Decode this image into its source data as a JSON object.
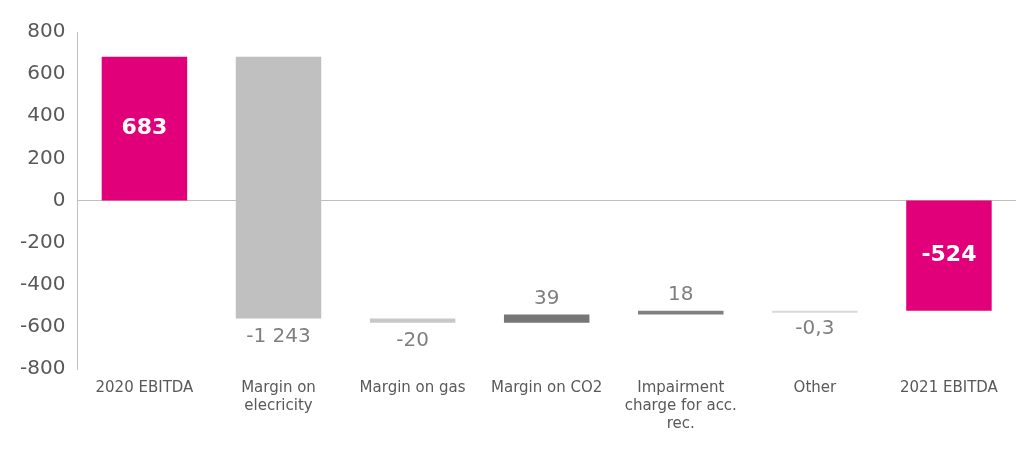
{
  "chart_data": {
    "type": "bar",
    "categories": [
      "2020 EBITDA",
      "Margin on elecricity",
      "Margin on gas",
      "Margin on CO2",
      "Impairment charge for acc. rec.",
      "Other",
      "2021 EBITDA"
    ],
    "values": [
      683,
      -1243,
      -20,
      39,
      18,
      -0.3,
      -524
    ],
    "base": [
      null,
      683,
      -560,
      -580,
      -541,
      -523,
      null
    ],
    "colors": [
      "#e2007a",
      "#c0c0c0",
      "#c8c8c8",
      "#767676",
      "#808080",
      "#d9d9d9",
      "#e2007a"
    ],
    "value_labels": [
      "683",
      "-1 243",
      "-20",
      "39",
      "18",
      "-0,3",
      "-524"
    ],
    "ylim": [
      -800,
      800
    ],
    "yticks": [
      -800,
      -600,
      -400,
      -200,
      0,
      200,
      400,
      600,
      800
    ],
    "ref_lines": [
      {
        "axis": "y",
        "value": 0,
        "color": "#bfbfbf"
      }
    ],
    "grid": false,
    "legend": false
  }
}
